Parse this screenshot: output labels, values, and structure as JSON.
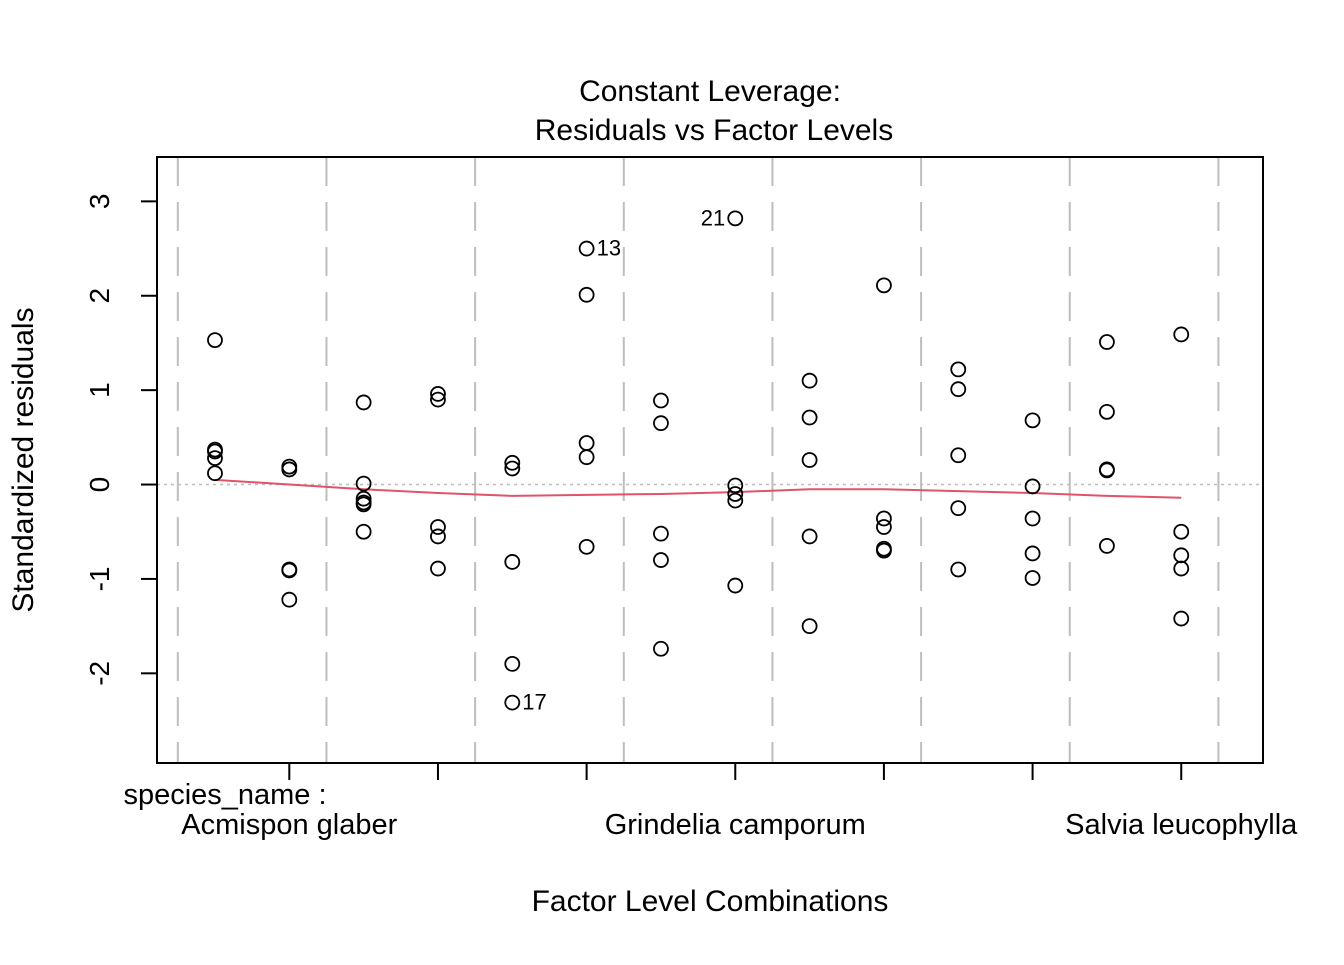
{
  "chart_data": {
    "type": "scatter",
    "title": "Constant Leverage:",
    "subtitle": "Residuals vs Factor Levels",
    "xlabel": "Factor Level Combinations",
    "ylabel": "Standardized residuals",
    "factor_name": "species_name :",
    "x_tick_labels": [
      "Acmispon glaber",
      "Grindelia camporum",
      "Salvia leucophylla"
    ],
    "x_tick_label_positions": [
      2,
      8,
      14
    ],
    "x_tick_positions": [
      2,
      4,
      6,
      8,
      10,
      12,
      14
    ],
    "separator_positions": [
      0.5,
      2.5,
      4.5,
      6.5,
      8.5,
      10.5,
      12.5,
      14.5
    ],
    "yticks": [
      "3",
      "2",
      "1",
      "0",
      "-1",
      "-2"
    ],
    "ytick_values": [
      3,
      2,
      1,
      0,
      -1,
      -2
    ],
    "xlim": [
      0.22,
      15.1
    ],
    "ylim": [
      -2.95,
      3.47
    ],
    "grid": false,
    "reference_line": 0,
    "colors": {
      "points": "#000000",
      "smoother": "#DF536B",
      "separators": "#BEBEBE",
      "reference": "#BEBEBE"
    },
    "series": [
      {
        "type": "points",
        "points": [
          {
            "x": 1,
            "y": 1.53
          },
          {
            "x": 1,
            "y": 0.37
          },
          {
            "x": 1,
            "y": 0.35
          },
          {
            "x": 1,
            "y": 0.28
          },
          {
            "x": 1,
            "y": 0.12
          },
          {
            "x": 2,
            "y": 0.19
          },
          {
            "x": 2,
            "y": 0.16
          },
          {
            "x": 2,
            "y": -0.9
          },
          {
            "x": 2,
            "y": -0.91
          },
          {
            "x": 2,
            "y": -1.22
          },
          {
            "x": 3,
            "y": 0.87
          },
          {
            "x": 3,
            "y": 0.01
          },
          {
            "x": 3,
            "y": -0.15
          },
          {
            "x": 3,
            "y": -0.19
          },
          {
            "x": 3,
            "y": -0.21
          },
          {
            "x": 3,
            "y": -0.5
          },
          {
            "x": 4,
            "y": 0.96
          },
          {
            "x": 4,
            "y": 0.9
          },
          {
            "x": 4,
            "y": -0.45
          },
          {
            "x": 4,
            "y": -0.55
          },
          {
            "x": 4,
            "y": -0.89
          },
          {
            "x": 5,
            "y": 0.23
          },
          {
            "x": 5,
            "y": 0.17
          },
          {
            "x": 5,
            "y": -0.82
          },
          {
            "x": 5,
            "y": -1.9
          },
          {
            "x": 5,
            "y": -2.31,
            "label": "17",
            "label_side": "right"
          },
          {
            "x": 6,
            "y": 2.5,
            "label": "13",
            "label_side": "right"
          },
          {
            "x": 6,
            "y": 2.01
          },
          {
            "x": 6,
            "y": 0.44
          },
          {
            "x": 6,
            "y": 0.29
          },
          {
            "x": 6,
            "y": -0.66
          },
          {
            "x": 7,
            "y": 0.89
          },
          {
            "x": 7,
            "y": 0.65
          },
          {
            "x": 7,
            "y": -0.52
          },
          {
            "x": 7,
            "y": -0.8
          },
          {
            "x": 7,
            "y": -1.74
          },
          {
            "x": 8,
            "y": 2.82,
            "label": "21",
            "label_side": "left"
          },
          {
            "x": 8,
            "y": -0.01
          },
          {
            "x": 8,
            "y": -0.1
          },
          {
            "x": 8,
            "y": -0.17
          },
          {
            "x": 8,
            "y": -1.07
          },
          {
            "x": 9,
            "y": 1.1
          },
          {
            "x": 9,
            "y": 0.71
          },
          {
            "x": 9,
            "y": 0.26
          },
          {
            "x": 9,
            "y": -0.55
          },
          {
            "x": 9,
            "y": -1.5
          },
          {
            "x": 10,
            "y": 2.11
          },
          {
            "x": 10,
            "y": -0.36
          },
          {
            "x": 10,
            "y": -0.45
          },
          {
            "x": 10,
            "y": -0.68
          },
          {
            "x": 10,
            "y": -0.7
          },
          {
            "x": 11,
            "y": 1.22
          },
          {
            "x": 11,
            "y": 1.01
          },
          {
            "x": 11,
            "y": 0.31
          },
          {
            "x": 11,
            "y": -0.25
          },
          {
            "x": 11,
            "y": -0.9
          },
          {
            "x": 12,
            "y": 0.68
          },
          {
            "x": 12,
            "y": -0.02
          },
          {
            "x": 12,
            "y": -0.36
          },
          {
            "x": 12,
            "y": -0.73
          },
          {
            "x": 12,
            "y": -0.99
          },
          {
            "x": 13,
            "y": 1.51
          },
          {
            "x": 13,
            "y": 0.77
          },
          {
            "x": 13,
            "y": 0.16
          },
          {
            "x": 13,
            "y": 0.15
          },
          {
            "x": 13,
            "y": -0.65
          },
          {
            "x": 14,
            "y": 1.59
          },
          {
            "x": 14,
            "y": -0.5
          },
          {
            "x": 14,
            "y": -0.75
          },
          {
            "x": 14,
            "y": -0.89
          },
          {
            "x": 14,
            "y": -1.42
          }
        ]
      },
      {
        "type": "smoother",
        "points": [
          {
            "x": 1,
            "y": 0.05
          },
          {
            "x": 2,
            "y": 0.0
          },
          {
            "x": 3,
            "y": -0.05
          },
          {
            "x": 4,
            "y": -0.09
          },
          {
            "x": 5,
            "y": -0.12
          },
          {
            "x": 6,
            "y": -0.11
          },
          {
            "x": 7,
            "y": -0.1
          },
          {
            "x": 8,
            "y": -0.08
          },
          {
            "x": 9,
            "y": -0.05
          },
          {
            "x": 10,
            "y": -0.05
          },
          {
            "x": 11,
            "y": -0.07
          },
          {
            "x": 12,
            "y": -0.09
          },
          {
            "x": 13,
            "y": -0.12
          },
          {
            "x": 14,
            "y": -0.14
          }
        ]
      }
    ]
  }
}
